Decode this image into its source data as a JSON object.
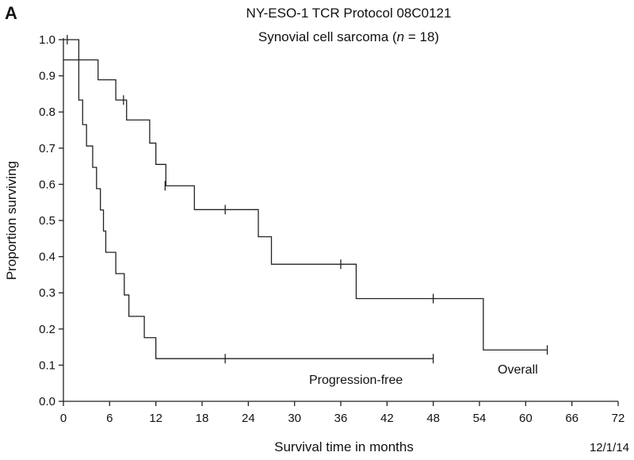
{
  "panel_label": "A",
  "footer_date": "12/1/14",
  "chart_data": {
    "type": "line",
    "title": "NY-ESO-1 TCR Protocol 08C0121",
    "subtitle_main": "Synovial cell sarcoma (",
    "subtitle_n": "n",
    "subtitle_rest": " = 18)",
    "xlabel": "Survival time in months",
    "ylabel": "Proportion surviving",
    "xlim": [
      0,
      72
    ],
    "ylim": [
      0,
      1.0
    ],
    "x_ticks": [
      "0",
      "6",
      "12",
      "18",
      "24",
      "30",
      "36",
      "42",
      "48",
      "54",
      "60",
      "66",
      "72"
    ],
    "y_ticks": [
      "0.0",
      "0.1",
      "0.2",
      "0.3",
      "0.4",
      "0.5",
      "0.6",
      "0.7",
      "0.8",
      "0.9",
      "1.0"
    ],
    "grid": false,
    "series": [
      {
        "name": "Overall",
        "steps": [
          [
            0,
            1.0
          ],
          [
            2,
            0.944
          ],
          [
            4.5,
            0.889
          ],
          [
            6.8,
            0.833
          ],
          [
            8.2,
            0.778
          ],
          [
            11.2,
            0.714
          ],
          [
            12,
            0.655
          ],
          [
            13.3,
            0.596
          ],
          [
            17,
            0.53
          ],
          [
            25.3,
            0.455
          ],
          [
            27,
            0.379
          ],
          [
            38,
            0.284
          ],
          [
            54.5,
            0.142
          ],
          [
            62.8,
            0.142
          ]
        ],
        "censored": [
          [
            0.5,
            1.0
          ],
          [
            7.8,
            0.833
          ],
          [
            13.2,
            0.596
          ],
          [
            21,
            0.53
          ],
          [
            36,
            0.379
          ],
          [
            48,
            0.284
          ],
          [
            62.8,
            0.142
          ]
        ]
      },
      {
        "name": "Progression-free",
        "steps": [
          [
            0,
            0.944
          ],
          [
            2,
            0.833
          ],
          [
            2.5,
            0.765
          ],
          [
            3,
            0.706
          ],
          [
            3.8,
            0.647
          ],
          [
            4.3,
            0.588
          ],
          [
            4.8,
            0.529
          ],
          [
            5.2,
            0.471
          ],
          [
            5.5,
            0.412
          ],
          [
            6.8,
            0.353
          ],
          [
            7.9,
            0.294
          ],
          [
            8.5,
            0.235
          ],
          [
            10.5,
            0.176
          ],
          [
            12,
            0.118
          ],
          [
            48,
            0.118
          ]
        ],
        "censored": [
          [
            21,
            0.118
          ],
          [
            48,
            0.118
          ]
        ]
      }
    ]
  }
}
